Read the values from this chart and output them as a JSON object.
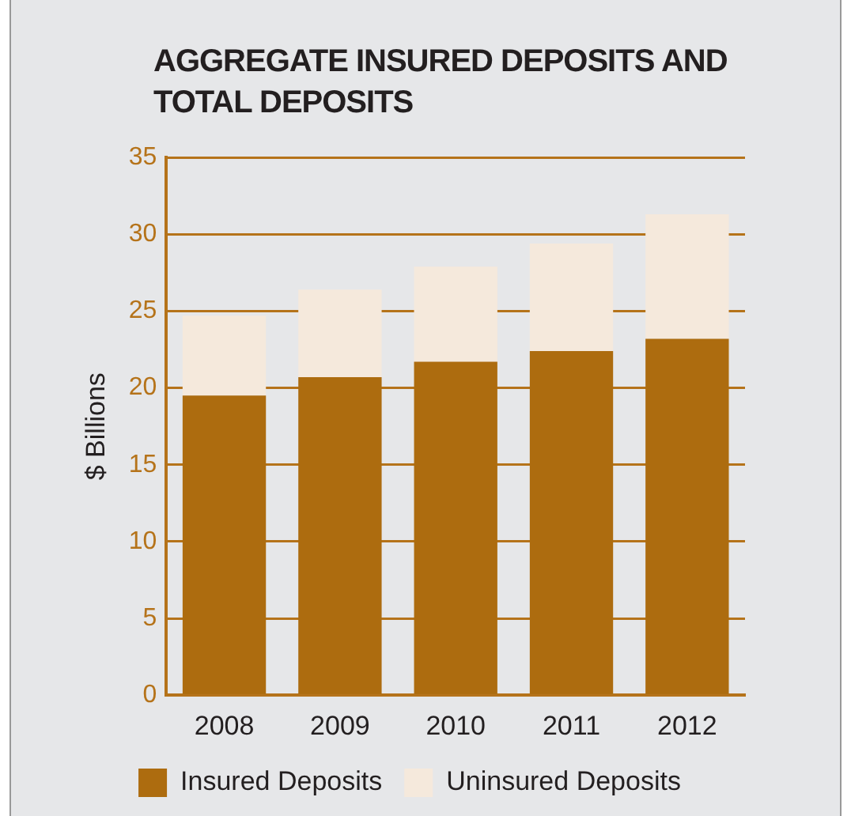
{
  "chart_data": {
    "type": "bar",
    "title": "AGGREGATE INSURED DEPOSITS AND TOTAL DEPOSITS",
    "ylabel": "$ Billions",
    "categories": [
      "2008",
      "2009",
      "2010",
      "2011",
      "2012"
    ],
    "series": [
      {
        "name": "Insured Deposits",
        "color": "#ad6c0f",
        "values": [
          19.5,
          20.7,
          21.7,
          22.4,
          23.2
        ]
      },
      {
        "name": "Uninsured Deposits",
        "color": "#f5e9dc",
        "values": [
          5.2,
          5.7,
          6.2,
          7.0,
          8.1
        ]
      }
    ],
    "stacked": true,
    "ylim": [
      0,
      35
    ],
    "yticks": [
      0,
      5,
      10,
      15,
      20,
      25,
      30,
      35
    ],
    "grid": "y",
    "legend": "bottom"
  }
}
